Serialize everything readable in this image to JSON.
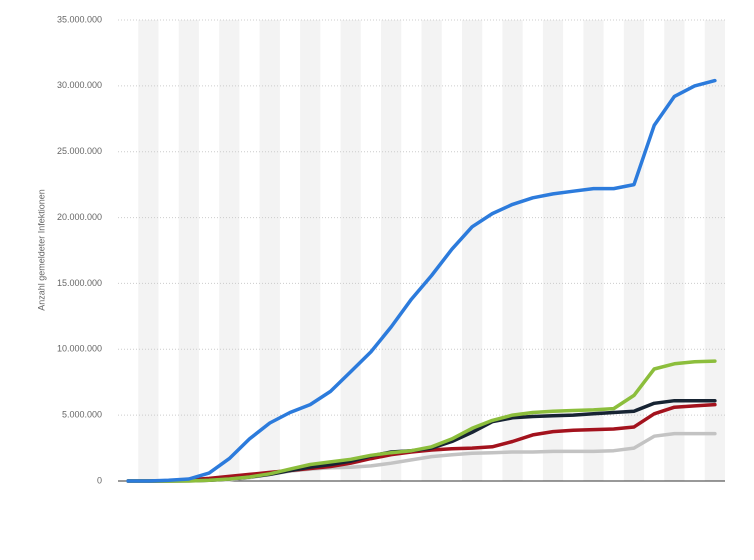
{
  "chart_data": {
    "type": "line",
    "y_label": "Anzahl gemeldeter Infektionen",
    "categories": [
      null,
      null,
      null,
      null,
      null,
      null,
      null,
      null,
      null,
      null,
      null,
      null,
      null,
      null,
      null,
      null,
      null,
      null,
      null,
      null,
      null,
      null,
      null,
      null,
      null,
      null,
      null,
      null,
      null,
      null
    ],
    "ylim": [
      0,
      35000000
    ],
    "yticks": [
      0,
      {
        "value": 5000000,
        "label": "5.000.000"
      },
      {
        "value": 10000000,
        "label": "10.000.000"
      },
      {
        "value": 15000000,
        "label": "15.000.000"
      },
      {
        "value": 20000000,
        "label": "20.000.000"
      },
      {
        "value": 25000000,
        "label": "25.000.000"
      },
      {
        "value": 30000000,
        "label": "30.000.000"
      },
      {
        "value": 35000000,
        "label": "35.000.000"
      }
    ],
    "grid": true,
    "series": [
      {
        "color": "#c3c3c3",
        "values": [
          0,
          0,
          0,
          0,
          50000,
          100000,
          250000,
          500000,
          750000,
          900000,
          1000000,
          1050000,
          1150000,
          1350000,
          1600000,
          1850000,
          2000000,
          2100000,
          2150000,
          2200000,
          2200000,
          2250000,
          2250000,
          2250000,
          2300000,
          2500000,
          3400000,
          3600000,
          3600000,
          3600000
        ]
      },
      {
        "color": "#a3121d",
        "values": [
          0,
          0,
          20000,
          100000,
          200000,
          350000,
          500000,
          650000,
          800000,
          950000,
          1100000,
          1350000,
          1700000,
          2000000,
          2200000,
          2350000,
          2450000,
          2500000,
          2600000,
          3000000,
          3500000,
          3750000,
          3850000,
          3900000,
          3950000,
          4100000,
          5100000,
          5600000,
          5700000,
          5800000
        ]
      },
      {
        "color": "#172433",
        "values": [
          0,
          0,
          0,
          20000,
          50000,
          150000,
          300000,
          500000,
          800000,
          1050000,
          1250000,
          1500000,
          1900000,
          2200000,
          2300000,
          2500000,
          3000000,
          3700000,
          4500000,
          4800000,
          4900000,
          4950000,
          5000000,
          5100000,
          5200000,
          5300000,
          5900000,
          6100000,
          6100000,
          6100000
        ]
      },
      {
        "color": "#8cbe3c",
        "values": [
          0,
          0,
          0,
          0,
          50000,
          150000,
          300000,
          550000,
          900000,
          1250000,
          1450000,
          1650000,
          1950000,
          2150000,
          2300000,
          2600000,
          3200000,
          4000000,
          4600000,
          5000000,
          5200000,
          5300000,
          5350000,
          5400000,
          5500000,
          6500000,
          8500000,
          8900000,
          9050000,
          9100000
        ]
      },
      {
        "color": "#2c7bdc",
        "values": [
          0,
          0,
          50000,
          150000,
          600000,
          1700000,
          3200000,
          4400000,
          5200000,
          5800000,
          6800000,
          8300000,
          9800000,
          11700000,
          13800000,
          15600000,
          17600000,
          19300000,
          20300000,
          21000000,
          21500000,
          21800000,
          22000000,
          22200000,
          22200000,
          22500000,
          27000000,
          29200000,
          30000000,
          30400000
        ]
      }
    ]
  }
}
